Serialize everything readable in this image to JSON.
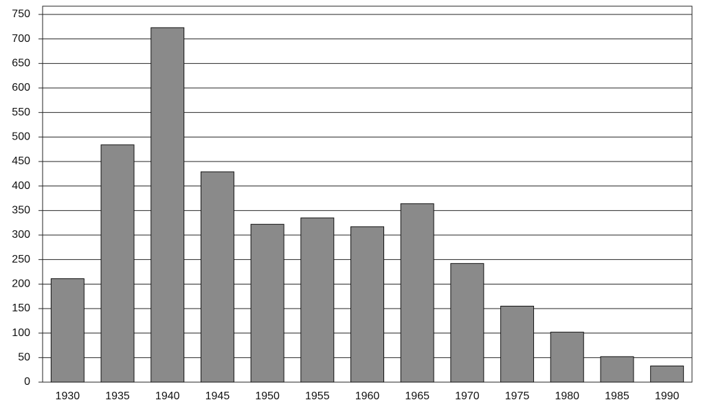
{
  "chart_data": {
    "type": "bar",
    "categories": [
      "1930",
      "1935",
      "1940",
      "1945",
      "1950",
      "1955",
      "1960",
      "1965",
      "1970",
      "1975",
      "1980",
      "1985",
      "1990"
    ],
    "values": [
      211,
      484,
      723,
      429,
      322,
      335,
      317,
      364,
      242,
      155,
      102,
      52,
      33
    ],
    "color": "#8a8a8a",
    "ylim": [
      0,
      750
    ],
    "yticks": [
      0,
      50,
      100,
      150,
      200,
      250,
      300,
      350,
      400,
      450,
      500,
      550,
      600,
      650,
      700,
      750
    ],
    "grid": true
  }
}
